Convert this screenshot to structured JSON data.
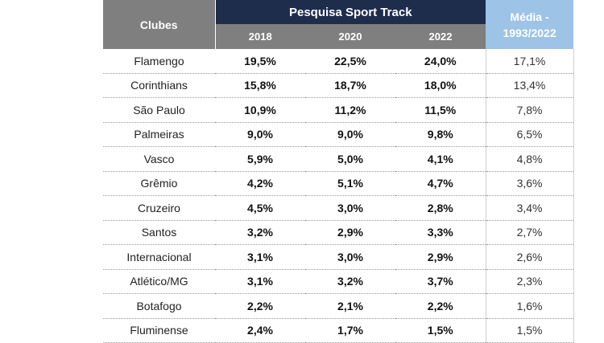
{
  "header": {
    "clubs_label": "Clubes",
    "survey_label": "Pesquisa Sport Track",
    "years": [
      "2018",
      "2020",
      "2022"
    ],
    "average_label_line1": "Média -",
    "average_label_line2": "1993/2022"
  },
  "rows": [
    {
      "club": "Flamengo",
      "v2018": "19,5%",
      "v2020": "22,5%",
      "v2022": "24,0%",
      "avg": "17,1%"
    },
    {
      "club": "Corinthians",
      "v2018": "15,8%",
      "v2020": "18,7%",
      "v2022": "18,0%",
      "avg": "13,4%"
    },
    {
      "club": "São Paulo",
      "v2018": "10,9%",
      "v2020": "11,2%",
      "v2022": "11,5%",
      "avg": "7,8%"
    },
    {
      "club": "Palmeiras",
      "v2018": "9,0%",
      "v2020": "9,0%",
      "v2022": "9,8%",
      "avg": "6,5%"
    },
    {
      "club": "Vasco",
      "v2018": "5,9%",
      "v2020": "5,0%",
      "v2022": "4,1%",
      "avg": "4,8%"
    },
    {
      "club": "Grêmio",
      "v2018": "4,2%",
      "v2020": "5,1%",
      "v2022": "4,7%",
      "avg": "3,6%"
    },
    {
      "club": "Cruzeiro",
      "v2018": "4,5%",
      "v2020": "3,0%",
      "v2022": "2,8%",
      "avg": "3,4%"
    },
    {
      "club": "Santos",
      "v2018": "3,2%",
      "v2020": "2,9%",
      "v2022": "3,3%",
      "avg": "2,7%"
    },
    {
      "club": "Internacional",
      "v2018": "3,1%",
      "v2020": "3,0%",
      "v2022": "2,9%",
      "avg": "2,6%"
    },
    {
      "club": "Atlético/MG",
      "v2018": "3,1%",
      "v2020": "3,2%",
      "v2022": "3,7%",
      "avg": "2,3%"
    },
    {
      "club": "Botafogo",
      "v2018": "2,2%",
      "v2020": "2,1%",
      "v2022": "2,2%",
      "avg": "1,6%"
    },
    {
      "club": "Fluminense",
      "v2018": "2,4%",
      "v2020": "1,7%",
      "v2022": "1,5%",
      "avg": "1,5%"
    }
  ],
  "colors": {
    "survey_header": "#1f2d4d",
    "gray_header": "#7f7f7f",
    "average_header": "#9dc3e6"
  }
}
